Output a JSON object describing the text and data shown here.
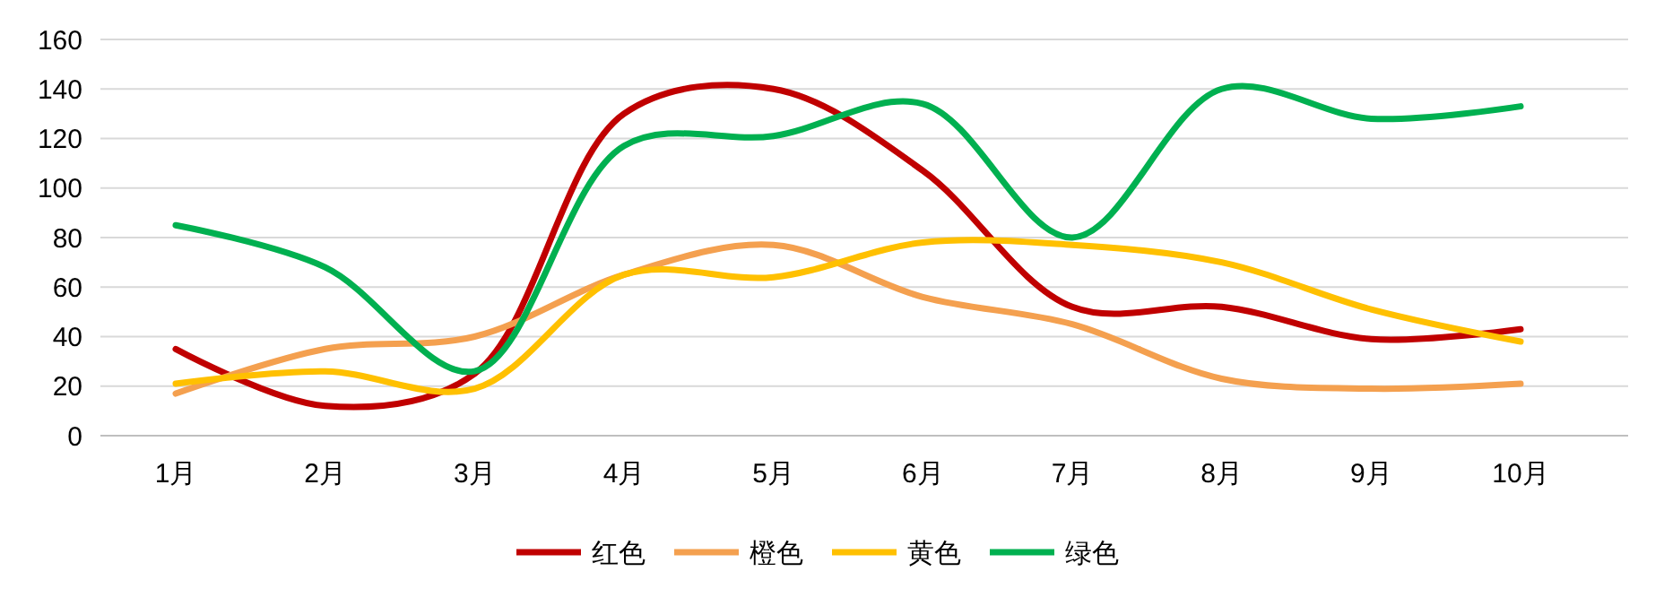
{
  "chart_data": {
    "type": "line",
    "categories": [
      "1月",
      "2月",
      "3月",
      "4月",
      "5月",
      "6月",
      "7月",
      "8月",
      "9月",
      "10月"
    ],
    "series": [
      {
        "name": "红色",
        "color": "#c00000",
        "values": [
          35,
          12,
          25,
          130,
          140,
          107,
          52,
          52,
          39,
          43
        ]
      },
      {
        "name": "橙色",
        "color": "#f4a04f",
        "values": [
          17,
          35,
          40,
          65,
          77,
          56,
          45,
          23,
          19,
          21
        ]
      },
      {
        "name": "黄色",
        "color": "#ffc000",
        "values": [
          21,
          26,
          19,
          65,
          64,
          78,
          77,
          70,
          51,
          38
        ]
      },
      {
        "name": "绿色",
        "color": "#00b050",
        "values": [
          85,
          68,
          26,
          117,
          121,
          134,
          80,
          140,
          128,
          133
        ]
      }
    ],
    "ylim": [
      0,
      160
    ],
    "yticks": [
      0,
      20,
      40,
      60,
      80,
      100,
      120,
      140,
      160
    ],
    "grid": "y",
    "legend": "bottom",
    "marker": "none",
    "line_style": "solid"
  }
}
